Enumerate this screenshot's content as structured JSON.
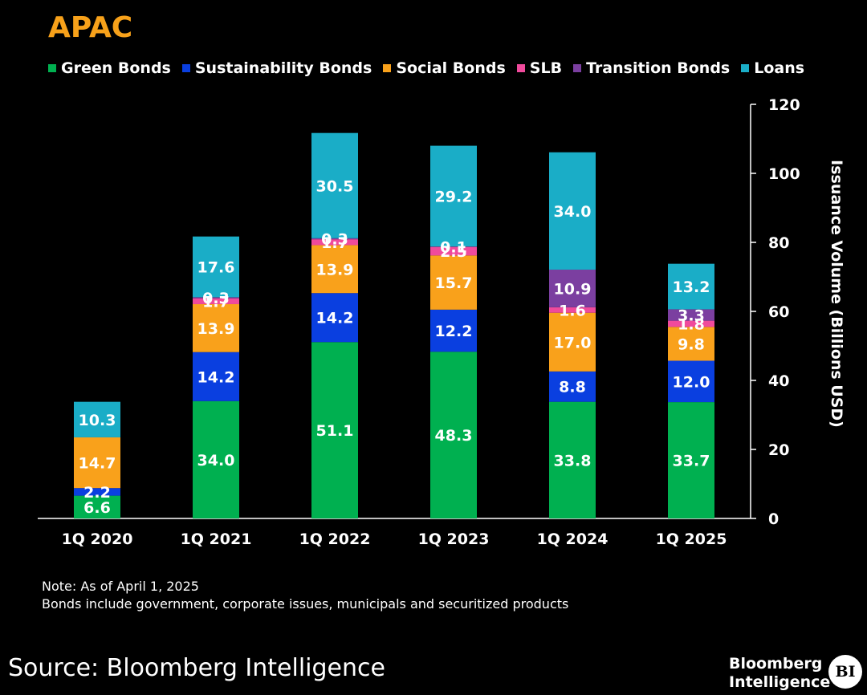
{
  "chart_data": {
    "type": "bar",
    "stacked": true,
    "title": "APAC",
    "ylabel": "Issuance Volume (Billions USD)",
    "xlabel": "",
    "ylim": [
      0,
      120
    ],
    "yticks": [
      0,
      20,
      40,
      60,
      80,
      100,
      120
    ],
    "y_axis_side": "right",
    "legend_position": "top",
    "categories": [
      "1Q 2020",
      "1Q 2021",
      "1Q 2022",
      "1Q 2023",
      "1Q 2024",
      "1Q 2025"
    ],
    "series": [
      {
        "name": "Green Bonds",
        "color": "#00b050",
        "values": [
          6.6,
          34.0,
          51.1,
          48.3,
          33.8,
          33.7
        ]
      },
      {
        "name": "Sustainability Bonds",
        "color": "#0a3fe0",
        "values": [
          2.2,
          14.2,
          14.2,
          12.2,
          8.8,
          12.0
        ]
      },
      {
        "name": "Social Bonds",
        "color": "#f9a11b",
        "values": [
          14.7,
          13.9,
          13.9,
          15.7,
          17.0,
          9.8
        ]
      },
      {
        "name": "SLB",
        "color": "#f04a9c",
        "values": [
          null,
          1.7,
          1.7,
          2.5,
          1.6,
          1.8
        ]
      },
      {
        "name": "Transition Bonds",
        "color": "#7b3fa0",
        "values": [
          null,
          0.3,
          0.3,
          0.1,
          10.9,
          3.3
        ]
      },
      {
        "name": "Loans",
        "color": "#1aadc7",
        "values": [
          10.3,
          17.6,
          30.5,
          29.2,
          34.0,
          13.2
        ]
      }
    ]
  },
  "notes": {
    "line1": "Note: As of April 1, 2025",
    "line2": "Bonds include government, corporate issues, municipals and securitized products"
  },
  "source": "Source: Bloomberg Intelligence",
  "brand": {
    "line1": "Bloomberg",
    "line2": "Intelligence",
    "logo": "BI"
  }
}
